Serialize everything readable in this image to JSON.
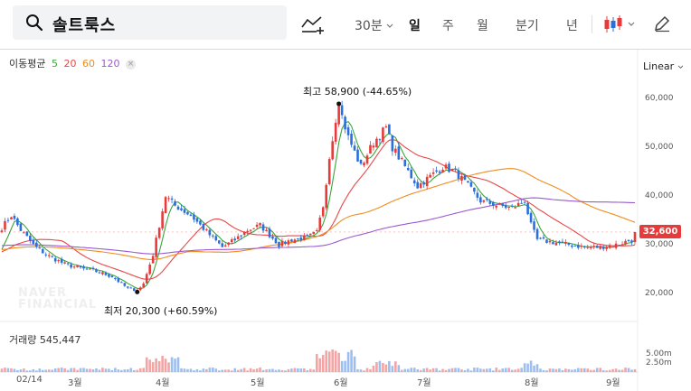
{
  "toolbar": {
    "stock_name": "솔트룩스",
    "interval": "30분",
    "periods": [
      "일",
      "주",
      "월",
      "분기",
      "년"
    ],
    "active_period": "일"
  },
  "ma_legend": {
    "label": "이동평균",
    "items": [
      {
        "period": "5",
        "color": "#3aa63a"
      },
      {
        "period": "20",
        "color": "#e84848"
      },
      {
        "period": "60",
        "color": "#f08c1e"
      },
      {
        "period": "120",
        "color": "#9b59d0"
      }
    ]
  },
  "scale_label": "Linear",
  "current_price_label": "32,600",
  "max_annotation": "최고 58,900 (-44.65%)",
  "min_annotation": "최저 20,300 (+60.59%)",
  "volume_legend": "거래량 545,447",
  "watermark": [
    "NAVER",
    "FINANCIAL"
  ],
  "chart_data": {
    "type": "candlestick",
    "title": "",
    "ylim": [
      15000,
      65000
    ],
    "y_ticks": [
      20000,
      30000,
      40000,
      50000,
      60000
    ],
    "y_tick_labels": [
      "20,000",
      "30,000",
      "40,000",
      "50,000",
      "60,000"
    ],
    "volume_ticks": [
      "5.00m",
      "2.50m"
    ],
    "x_tick_labels": [
      {
        "label": "02/14",
        "day": 0
      },
      {
        "label": "3월",
        "day": 15
      },
      {
        "label": "4월",
        "day": 46
      },
      {
        "label": "5월",
        "day": 76
      },
      {
        "label": "6월",
        "day": 107
      },
      {
        "label": "7월",
        "day": 137
      },
      {
        "label": "8월",
        "day": 168
      },
      {
        "label": "9월",
        "day": 199
      }
    ],
    "up_color": "#e73b3b",
    "down_color": "#2a6fdc",
    "anchors": [
      [
        0,
        33500
      ],
      [
        3,
        36000
      ],
      [
        6,
        33000
      ],
      [
        10,
        30000
      ],
      [
        14,
        28000
      ],
      [
        20,
        26000
      ],
      [
        26,
        25000
      ],
      [
        30,
        24500
      ],
      [
        35,
        23500
      ],
      [
        40,
        21000
      ],
      [
        43,
        20800
      ],
      [
        45,
        22000
      ],
      [
        48,
        28000
      ],
      [
        51,
        37000
      ],
      [
        52,
        40000
      ],
      [
        55,
        38000
      ],
      [
        60,
        36000
      ],
      [
        66,
        32000
      ],
      [
        70,
        29500
      ],
      [
        74,
        31000
      ],
      [
        78,
        33000
      ],
      [
        82,
        34000
      ],
      [
        88,
        30000
      ],
      [
        92,
        31000
      ],
      [
        97,
        31500
      ],
      [
        100,
        32500
      ],
      [
        102,
        38000
      ],
      [
        104,
        48000
      ],
      [
        106,
        56000
      ],
      [
        107,
        58500
      ],
      [
        110,
        52000
      ],
      [
        114,
        46000
      ],
      [
        118,
        51000
      ],
      [
        122,
        54000
      ],
      [
        124,
        50000
      ],
      [
        128,
        46000
      ],
      [
        132,
        42000
      ],
      [
        136,
        44000
      ],
      [
        140,
        46000
      ],
      [
        144,
        45000
      ],
      [
        148,
        42000
      ],
      [
        152,
        39000
      ],
      [
        158,
        38000
      ],
      [
        162,
        37500
      ],
      [
        166,
        39000
      ],
      [
        168,
        34000
      ],
      [
        170,
        31000
      ],
      [
        175,
        30500
      ],
      [
        180,
        30000
      ],
      [
        185,
        29500
      ],
      [
        190,
        29500
      ],
      [
        195,
        30000
      ],
      [
        200,
        31000
      ],
      [
        201,
        32600
      ]
    ],
    "moving_averages": [
      {
        "name": "5",
        "color": "#3aa63a",
        "period": 5
      },
      {
        "name": "20",
        "color": "#e84848",
        "period": 20
      },
      {
        "name": "60",
        "color": "#f08c1e",
        "period": 60
      },
      {
        "name": "120",
        "color": "#9b59d0",
        "period": 120
      }
    ],
    "max_point": {
      "day": 107,
      "value": 58900
    },
    "min_point": {
      "day": 43,
      "value": 20300
    },
    "current_value": 32600
  }
}
